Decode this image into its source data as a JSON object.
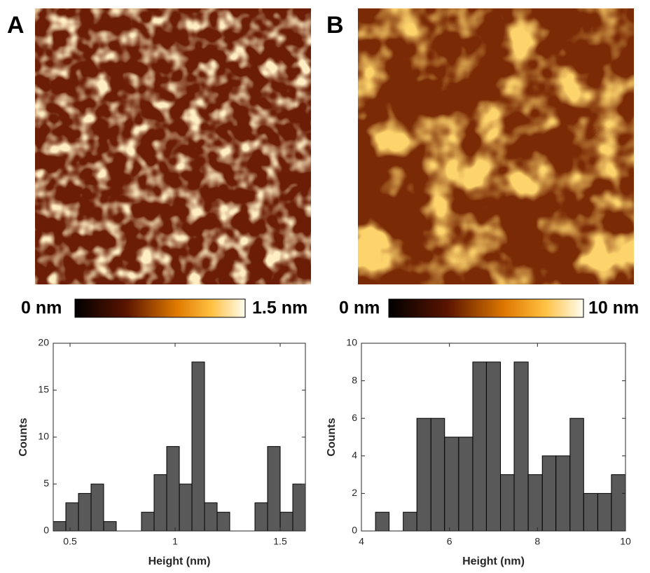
{
  "panels": [
    {
      "label": "A",
      "colorbar": {
        "min_label": "0 nm",
        "max_label": "1.5 nm"
      }
    },
    {
      "label": "B",
      "colorbar": {
        "min_label": "0 nm",
        "max_label": "10 nm"
      }
    }
  ],
  "chart_data": [
    {
      "type": "histogram",
      "color": "#595959",
      "bins": [
        0.42,
        0.48,
        0.54,
        0.6,
        0.66,
        0.72,
        0.78,
        0.84,
        0.9,
        0.96,
        1.02,
        1.08,
        1.14,
        1.2,
        1.26,
        1.32,
        1.38,
        1.44,
        1.5,
        1.56,
        1.62
      ],
      "values": [
        1,
        3,
        4,
        5,
        1,
        0,
        0,
        2,
        6,
        9,
        5,
        18,
        3,
        2,
        0,
        0,
        3,
        9,
        2,
        5
      ],
      "xlim": [
        0.42,
        1.62
      ],
      "ylim": [
        0,
        20
      ],
      "xticks": [
        0.5,
        1,
        1.5
      ],
      "yticks": [
        0,
        5,
        10,
        15,
        20
      ],
      "x_label": "Height (nm)",
      "y_label": "Counts"
    },
    {
      "type": "histogram",
      "color": "#595959",
      "bins": [
        4.32,
        4.63,
        4.95,
        5.26,
        5.58,
        5.89,
        6.21,
        6.53,
        6.84,
        7.16,
        7.47,
        7.79,
        8.11,
        8.42,
        8.74,
        9.05,
        9.37,
        9.68,
        10
      ],
      "values": [
        1,
        0,
        1,
        6,
        6,
        5,
        5,
        9,
        9,
        3,
        9,
        3,
        4,
        4,
        6,
        2,
        2,
        3
      ],
      "xlim": [
        4,
        10
      ],
      "ylim": [
        0,
        10
      ],
      "xticks": [
        4,
        6,
        8,
        10
      ],
      "yticks": [
        0,
        2,
        4,
        6,
        8,
        10
      ],
      "x_label": "Height (nm)",
      "y_label": "Counts"
    }
  ]
}
